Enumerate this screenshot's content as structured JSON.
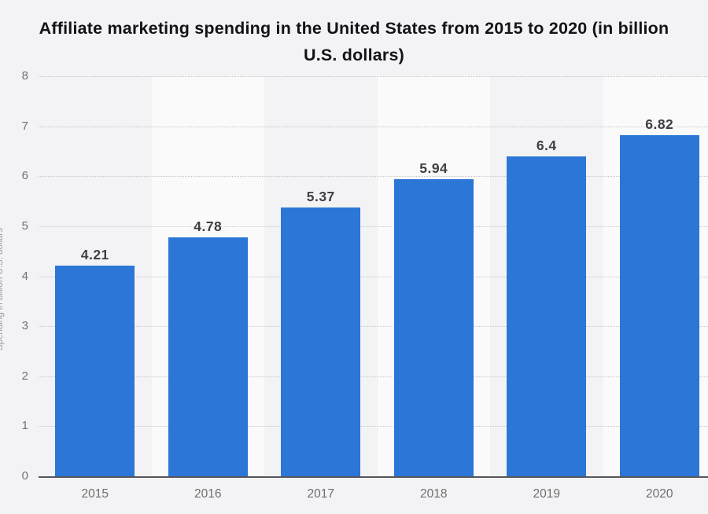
{
  "header": {
    "title_line1": "Affiliate marketing spending in the United States from 2015 to 2020 (in billion",
    "title_line2": "U.S. dollars)"
  },
  "chart_data": {
    "type": "bar",
    "title": "Affiliate marketing spending in the United States from 2015 to 2020 (in billion U.S. dollars)",
    "xlabel": "",
    "ylabel": "Spending in billion U.S. dollars",
    "categories": [
      "2015",
      "2016",
      "2017",
      "2018",
      "2019",
      "2020"
    ],
    "values": [
      4.21,
      4.78,
      5.37,
      5.94,
      6.4,
      6.82
    ],
    "value_labels": [
      "4.21",
      "4.78",
      "5.37",
      "5.94",
      "6.4",
      "6.82"
    ],
    "ylim": [
      0,
      8
    ],
    "yticks": [
      0,
      1,
      2,
      3,
      4,
      5,
      6,
      7,
      8
    ],
    "grid": "horizontal-dotted",
    "legend_position": "none",
    "plot_bands": "alternating-columns",
    "colors": {
      "bar": "#2b76d6",
      "page_background": "#f3f3f5",
      "band_light": "#fafafb",
      "gridline": "#c6c6c8",
      "axis_line": "#57575a",
      "value_label": "#3f4043",
      "tick_label": "#6e6e6e",
      "title": "#121316",
      "ylabel": "#9b9b9b"
    }
  }
}
